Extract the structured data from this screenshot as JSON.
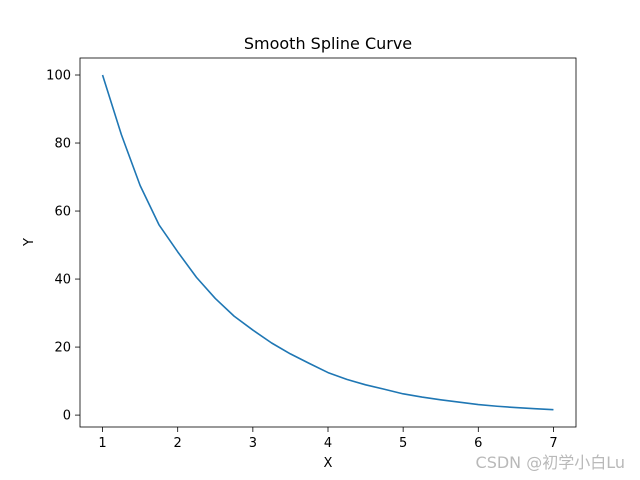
{
  "chart_data": {
    "type": "line",
    "title": "Smooth Spline Curve",
    "xlabel": "X",
    "ylabel": "Y",
    "xlim": [
      0.7,
      7.3
    ],
    "ylim": [
      -3.5,
      105
    ],
    "xticks": [
      1,
      2,
      3,
      4,
      5,
      6,
      7
    ],
    "yticks": [
      0,
      20,
      40,
      60,
      80,
      100
    ],
    "grid": false,
    "series": [
      {
        "color": "#1f77b4",
        "x": [
          1,
          1.25,
          1.5,
          1.75,
          2,
          2.25,
          2.5,
          2.75,
          3,
          3.25,
          3.5,
          3.75,
          4,
          4.25,
          4.5,
          4.75,
          5,
          5.25,
          5.5,
          5.75,
          6,
          6.25,
          6.5,
          6.75,
          7
        ],
        "y": [
          100,
          82.5,
          67.5,
          56,
          48,
          40.5,
          34.3,
          29.1,
          25,
          21.2,
          18,
          15.2,
          12.5,
          10.5,
          8.9,
          7.6,
          6.25,
          5.3,
          4.5,
          3.8,
          3.1,
          2.6,
          2.2,
          1.9,
          1.6
        ]
      }
    ]
  },
  "watermark": "CSDN @初学小白Lu"
}
